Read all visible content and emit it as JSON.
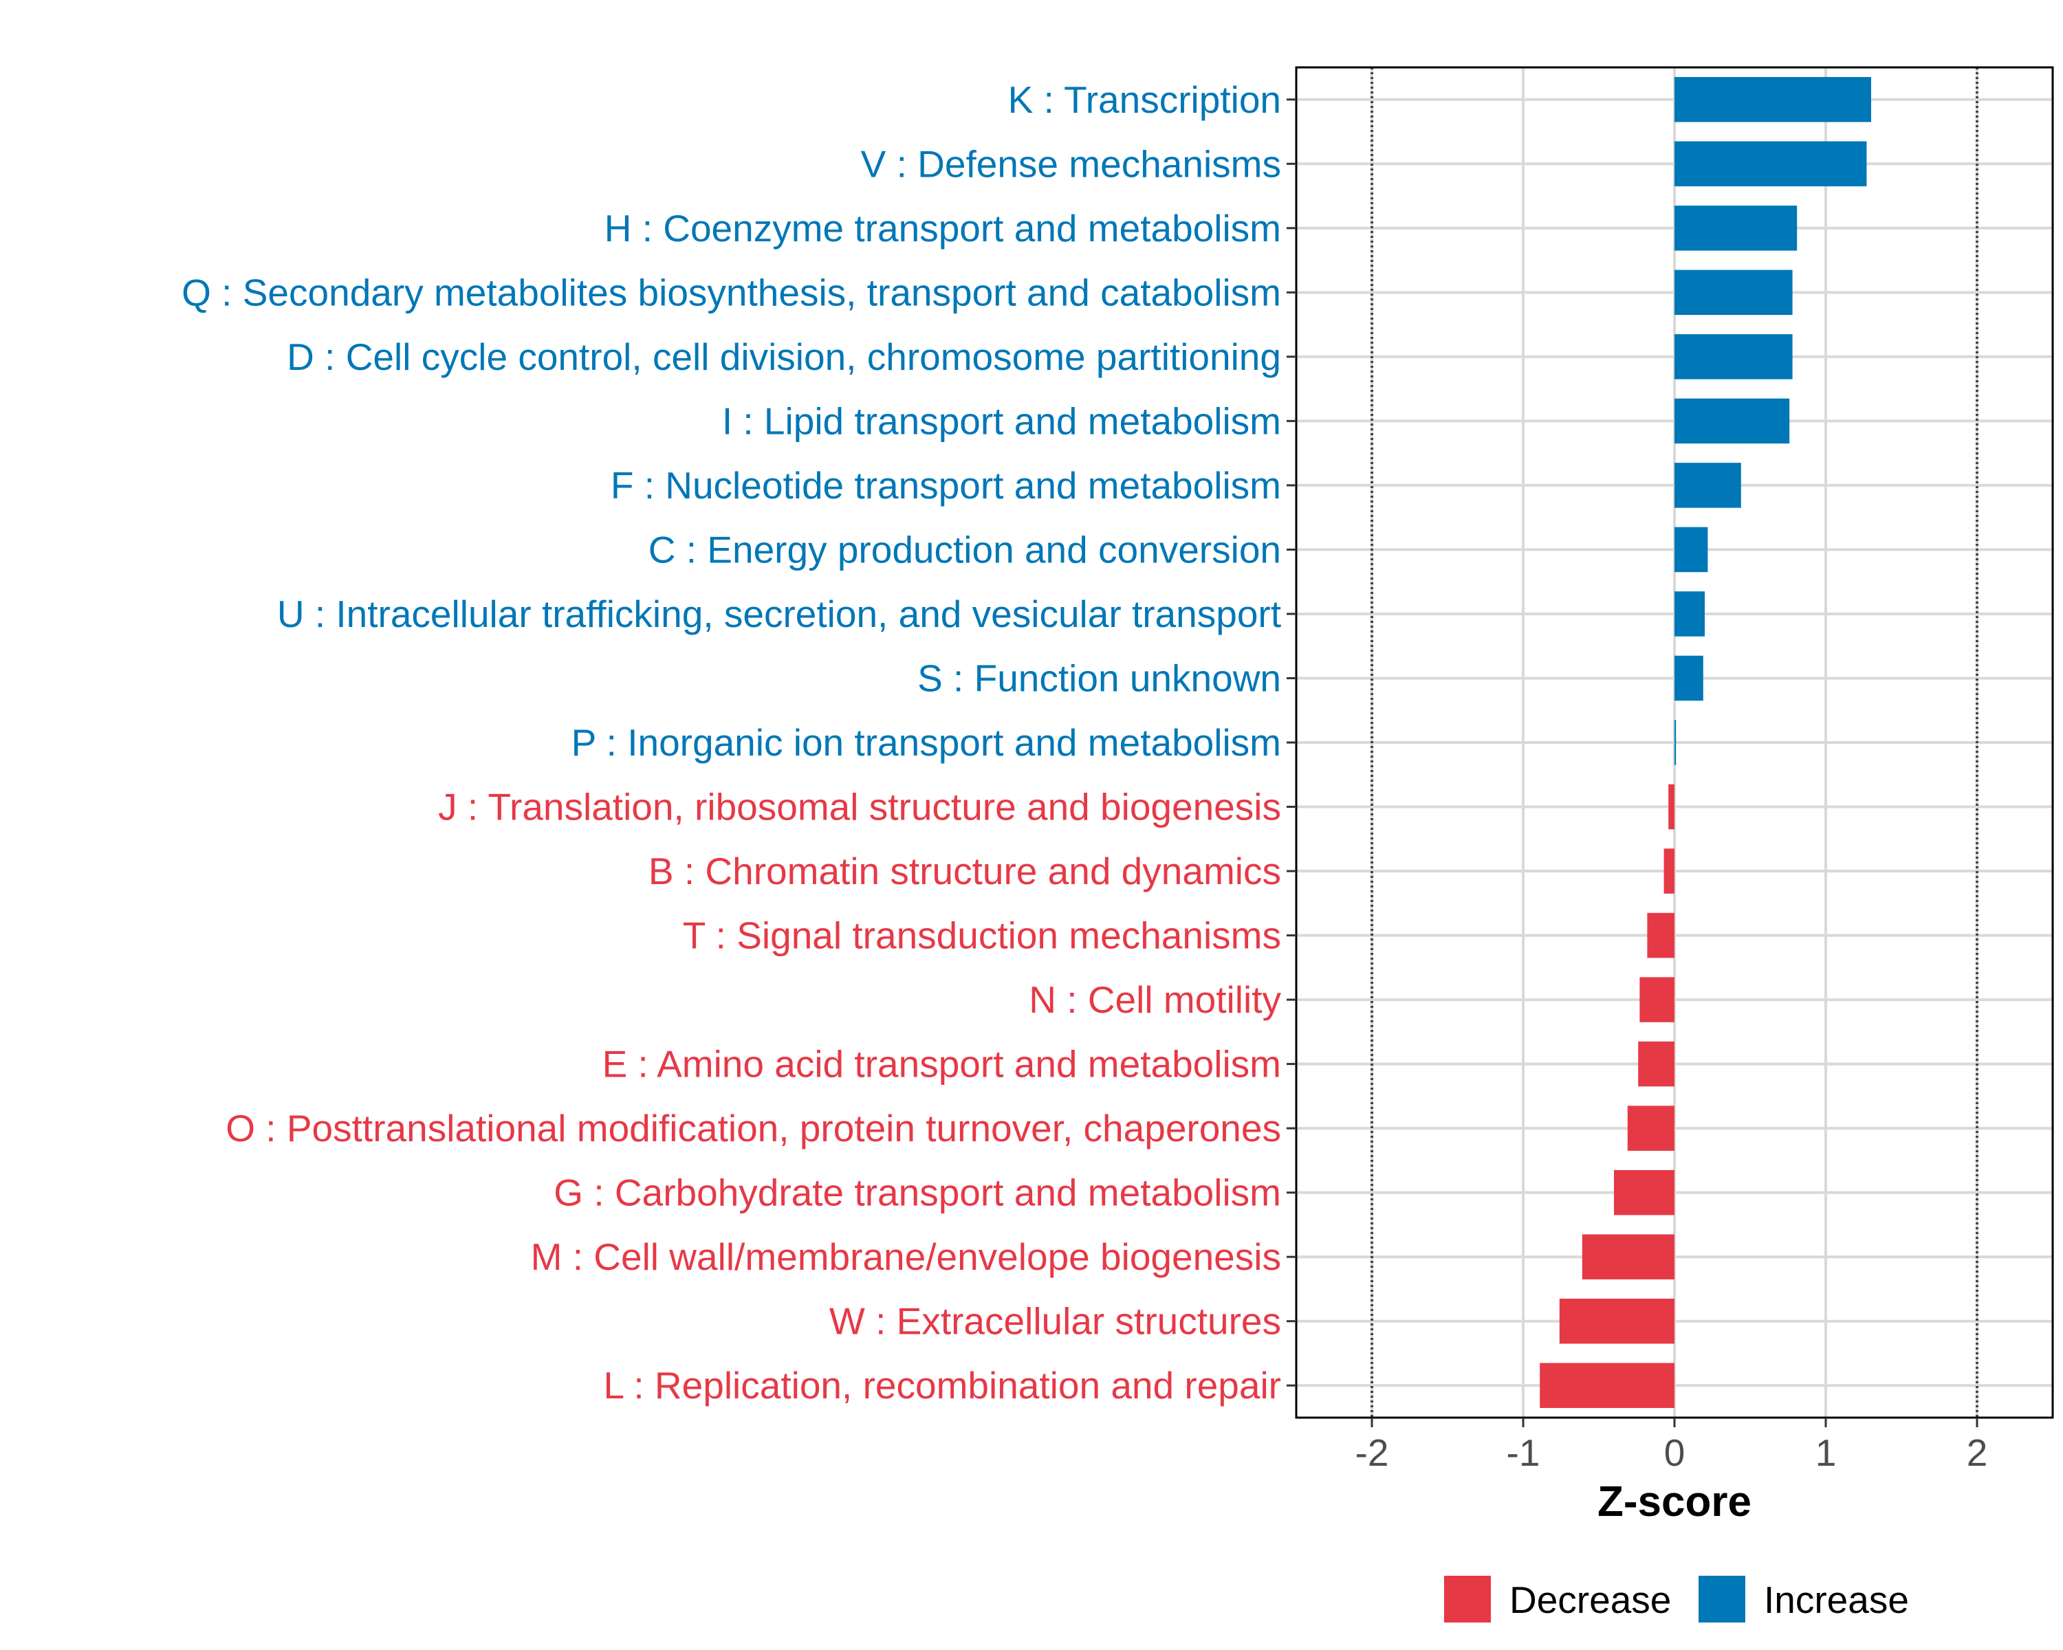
{
  "chart_data": {
    "type": "bar",
    "orientation": "horizontal",
    "categories": [
      "K : Transcription",
      "V : Defense mechanisms",
      "H : Coenzyme transport and metabolism",
      "Q : Secondary metabolites biosynthesis, transport and catabolism",
      "D : Cell cycle control, cell division, chromosome partitioning",
      "I : Lipid transport and metabolism",
      "F : Nucleotide transport and metabolism",
      "C : Energy production and conversion",
      "U : Intracellular trafficking, secretion, and vesicular transport",
      "S : Function unknown",
      "P : Inorganic ion transport and metabolism",
      "J : Translation, ribosomal structure and biogenesis",
      "B : Chromatin structure and dynamics",
      "T : Signal transduction mechanisms",
      "N : Cell motility",
      "E : Amino acid transport and metabolism",
      "O : Posttranslational modification, protein turnover, chaperones",
      "G : Carbohydrate transport and metabolism",
      "M : Cell wall/membrane/envelope biogenesis",
      "W : Extracellular structures",
      "L : Replication, recombination and repair"
    ],
    "values": [
      1.3,
      1.27,
      0.81,
      0.78,
      0.78,
      0.76,
      0.44,
      0.22,
      0.2,
      0.19,
      0.01,
      -0.04,
      -0.07,
      -0.18,
      -0.23,
      -0.24,
      -0.31,
      -0.4,
      -0.61,
      -0.76,
      -0.89
    ],
    "groups": [
      "Increase",
      "Increase",
      "Increase",
      "Increase",
      "Increase",
      "Increase",
      "Increase",
      "Increase",
      "Increase",
      "Increase",
      "Increase",
      "Decrease",
      "Decrease",
      "Decrease",
      "Decrease",
      "Decrease",
      "Decrease",
      "Decrease",
      "Decrease",
      "Decrease",
      "Decrease"
    ],
    "xlabel": "Z-score",
    "ylabel": "",
    "xlim": [
      -2.5,
      2.5
    ],
    "xticks": [
      -2,
      -1,
      0,
      1,
      2
    ],
    "xtick_labels": [
      "-2",
      "-1",
      "0",
      "1",
      "2"
    ],
    "reference_lines": [
      -2,
      2
    ],
    "grid": true,
    "legend": {
      "position": "bottom",
      "entries": [
        {
          "label": "Decrease",
          "color": "#E63946"
        },
        {
          "label": "Increase",
          "color": "#0077B6"
        }
      ]
    },
    "colors": {
      "Decrease": "#E63946",
      "Increase": "#0077B6"
    }
  }
}
